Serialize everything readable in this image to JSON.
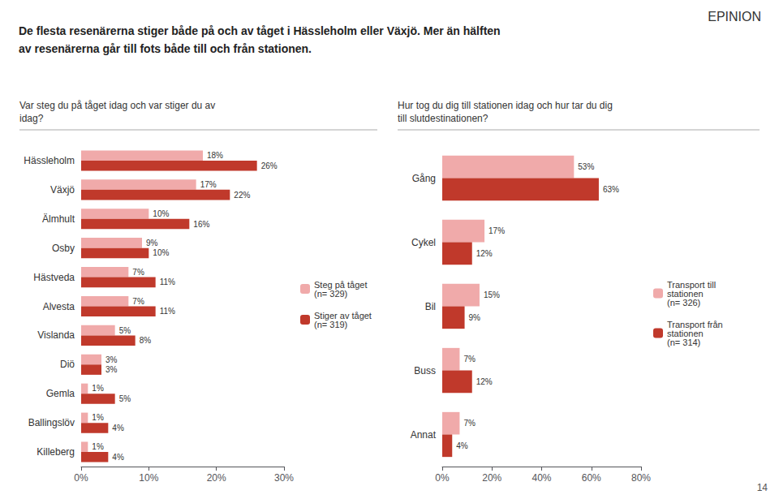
{
  "title": "De flesta resenärerna stiger både på och av tåget i Hässleholm eller Växjö. Mer än hälften\nav resenärerna går till fots både till och från stationen.",
  "annotations": [
    "EPINION",
    "14"
  ],
  "chart_data": [
    {
      "type": "bar",
      "orientation": "horizontal",
      "title": "Var steg du på tåget idag och var stiger du av\nidag?",
      "categories": [
        "Hässleholm",
        "Växjö",
        "Älmhult",
        "Osby",
        "Hästveda",
        "Alvesta",
        "Vislanda",
        "Diö",
        "Gemla",
        "Ballingslöv",
        "Killeberg"
      ],
      "series": [
        {
          "name": "Steg på tåget\n(n= 329)",
          "color": "#f0aaaa",
          "values": [
            18,
            17,
            10,
            9,
            7,
            7,
            5,
            3,
            1,
            1,
            1
          ],
          "value_labels": [
            "18%",
            "17%",
            "10%",
            "9%",
            "7%",
            "7%",
            "5%",
            "3%",
            "1%",
            "1%",
            "1%"
          ]
        },
        {
          "name": "Stiger av tåget\n(n= 319)",
          "color": "#c0392b",
          "values": [
            26,
            22,
            16,
            10,
            11,
            11,
            8,
            3,
            5,
            4,
            4
          ],
          "value_labels": [
            "26%",
            "22%",
            "16%",
            "10%",
            "11%",
            "11%",
            "8%",
            "3%",
            "5%",
            "4%",
            "4%"
          ]
        }
      ],
      "xlim": [
        0,
        30
      ],
      "xticks": [
        {
          "value": 0,
          "label": "0%"
        },
        {
          "value": 10,
          "label": "10%"
        },
        {
          "value": 20,
          "label": "20%"
        },
        {
          "value": 30,
          "label": "30%"
        }
      ],
      "grid": false,
      "legend": "right",
      "data_labels": true
    },
    {
      "type": "bar",
      "orientation": "horizontal",
      "title": "Hur tog du dig till stationen idag och hur tar du dig\ntill slutdestinationen?",
      "categories": [
        "Gång",
        "Cykel",
        "Bil",
        "Buss",
        "Annat"
      ],
      "series": [
        {
          "name": "Transport till\nstationen\n(n= 326)",
          "color": "#f0aaaa",
          "values": [
            53,
            17,
            15,
            7,
            7
          ],
          "value_labels": [
            "53%",
            "17%",
            "15%",
            "7%",
            "7%"
          ]
        },
        {
          "name": "Transport från\nstationen\n(n= 314)",
          "color": "#c0392b",
          "values": [
            63,
            12,
            9,
            12,
            4
          ],
          "value_labels": [
            "63%",
            "12%",
            "9%",
            "12%",
            "4%"
          ]
        }
      ],
      "xlim": [
        0,
        80
      ],
      "xticks": [
        {
          "value": 0,
          "label": "0%"
        },
        {
          "value": 20,
          "label": "20%"
        },
        {
          "value": 40,
          "label": "40%"
        },
        {
          "value": 60,
          "label": "60%"
        },
        {
          "value": 80,
          "label": "80%"
        }
      ],
      "grid": false,
      "legend": "right",
      "data_labels": true
    }
  ]
}
